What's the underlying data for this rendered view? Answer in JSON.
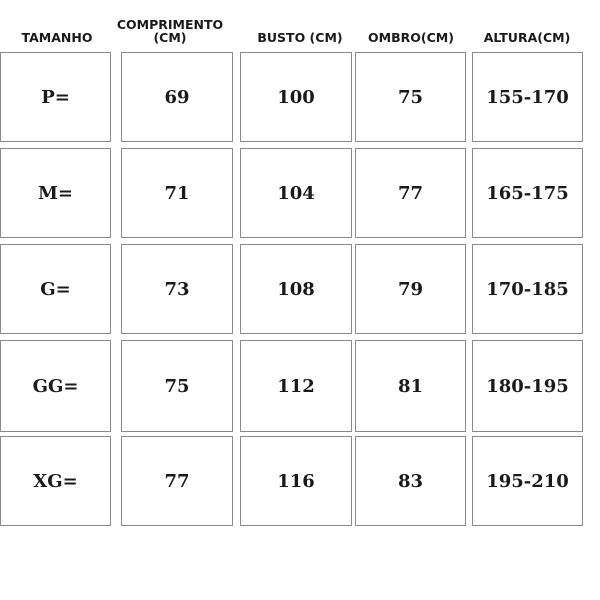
{
  "table": {
    "headers": [
      "TAMANHO",
      "COMPRIMENTO (CM)",
      "BUSTO (CM)",
      "OMBRO(CM)",
      "ALTURA(CM)"
    ],
    "rows": [
      [
        "P=",
        "69",
        "100",
        "75",
        "155-170"
      ],
      [
        "M=",
        "71",
        "104",
        "77",
        "165-175"
      ],
      [
        "G=",
        "73",
        "108",
        "79",
        "170-185"
      ],
      [
        "GG=",
        "75",
        "112",
        "81",
        "180-195"
      ],
      [
        "XG=",
        "77",
        "116",
        "83",
        "195-210"
      ]
    ]
  }
}
